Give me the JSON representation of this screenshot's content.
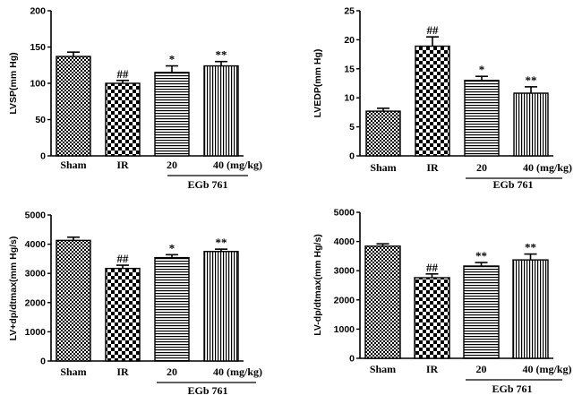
{
  "fill_colors": {
    "bar_edge": "#000000",
    "background": "#ffffff"
  },
  "chart_data": [
    {
      "type": "bar",
      "panel": "top-left",
      "ylabel": "LVSP(mm Hg)",
      "ylim": [
        0,
        200
      ],
      "yticks": [
        0,
        50,
        100,
        150,
        200
      ],
      "categories": [
        "Sham",
        "IR",
        "20",
        "40"
      ],
      "category_labels": [
        "Sham",
        "IR",
        "20",
        "40 (mg/kg)"
      ],
      "group_label": "EGb 761",
      "values": [
        137,
        100,
        115,
        124
      ],
      "errors": [
        6,
        4,
        9,
        6
      ],
      "significance": [
        "",
        "##",
        "*",
        "**"
      ],
      "patterns": [
        "checker-fine",
        "checker-coarse",
        "horizontal",
        "vertical"
      ]
    },
    {
      "type": "bar",
      "panel": "top-right",
      "ylabel": "LVEDP(mm Hg)",
      "ylim": [
        0,
        25
      ],
      "yticks": [
        0,
        5,
        10,
        15,
        20,
        25
      ],
      "categories": [
        "Sham",
        "IR",
        "20",
        "40"
      ],
      "category_labels": [
        "Sham",
        "IR",
        "20",
        "40 (mg/kg)"
      ],
      "group_label": "EGb 761",
      "values": [
        7.7,
        18.9,
        13.0,
        10.8
      ],
      "errors": [
        0.5,
        1.6,
        0.7,
        1.1
      ],
      "significance": [
        "",
        "##",
        "*",
        "**"
      ],
      "patterns": [
        "checker-fine",
        "checker-coarse",
        "horizontal",
        "vertical"
      ]
    },
    {
      "type": "bar",
      "panel": "bottom-left",
      "ylabel": "LV+dp/dtmax(mm Hg/s)",
      "ylim": [
        0,
        5000
      ],
      "yticks": [
        0,
        1000,
        2000,
        3000,
        4000,
        5000
      ],
      "categories": [
        "Sham",
        "IR",
        "20",
        "40"
      ],
      "category_labels": [
        "Sham",
        "IR",
        "20",
        "40 (mg/kg)"
      ],
      "group_label": "EGb 761",
      "values": [
        4130,
        3170,
        3540,
        3750
      ],
      "errors": [
        110,
        110,
        100,
        80
      ],
      "significance": [
        "",
        "##",
        "*",
        "**"
      ],
      "patterns": [
        "checker-fine",
        "checker-coarse",
        "horizontal",
        "vertical"
      ]
    },
    {
      "type": "bar",
      "panel": "bottom-right",
      "ylabel": "LV-dp/dtmax(mm Hg/s)",
      "ylim": [
        0,
        5000
      ],
      "yticks": [
        0,
        1000,
        2000,
        3000,
        4000,
        5000
      ],
      "categories": [
        "Sham",
        "IR",
        "20",
        "40"
      ],
      "category_labels": [
        "Sham",
        "IR",
        "20",
        "40 (mg/kg)"
      ],
      "group_label": "EGb 761",
      "values": [
        3840,
        2760,
        3160,
        3370
      ],
      "errors": [
        80,
        130,
        120,
        200
      ],
      "significance": [
        "",
        "##",
        "**",
        "**"
      ],
      "patterns": [
        "checker-fine",
        "checker-coarse",
        "horizontal",
        "vertical"
      ]
    }
  ]
}
